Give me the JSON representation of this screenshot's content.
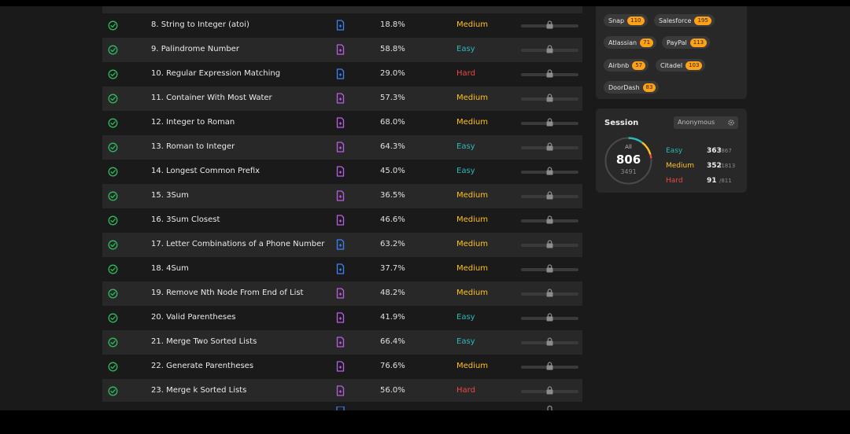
{
  "problems": [
    {
      "title": "8. String to Integer (atoi)",
      "acceptance": "18.8%",
      "difficulty": "Medium",
      "solution_color": "#3b82f6"
    },
    {
      "title": "9. Palindrome Number",
      "acceptance": "58.8%",
      "difficulty": "Easy",
      "solution_color": "#b95de6"
    },
    {
      "title": "10. Regular Expression Matching",
      "acceptance": "29.0%",
      "difficulty": "Hard",
      "solution_color": "#3b82f6"
    },
    {
      "title": "11. Container With Most Water",
      "acceptance": "57.3%",
      "difficulty": "Medium",
      "solution_color": "#b95de6"
    },
    {
      "title": "12. Integer to Roman",
      "acceptance": "68.0%",
      "difficulty": "Medium",
      "solution_color": "#b95de6"
    },
    {
      "title": "13. Roman to Integer",
      "acceptance": "64.3%",
      "difficulty": "Easy",
      "solution_color": "#b95de6"
    },
    {
      "title": "14. Longest Common Prefix",
      "acceptance": "45.0%",
      "difficulty": "Easy",
      "solution_color": "#b95de6"
    },
    {
      "title": "15. 3Sum",
      "acceptance": "36.5%",
      "difficulty": "Medium",
      "solution_color": "#b95de6"
    },
    {
      "title": "16. 3Sum Closest",
      "acceptance": "46.6%",
      "difficulty": "Medium",
      "solution_color": "#b95de6"
    },
    {
      "title": "17. Letter Combinations of a Phone Number",
      "acceptance": "63.2%",
      "difficulty": "Medium",
      "solution_color": "#3b82f6"
    },
    {
      "title": "18. 4Sum",
      "acceptance": "37.7%",
      "difficulty": "Medium",
      "solution_color": "#3b82f6"
    },
    {
      "title": "19. Remove Nth Node From End of List",
      "acceptance": "48.2%",
      "difficulty": "Medium",
      "solution_color": "#b95de6"
    },
    {
      "title": "20. Valid Parentheses",
      "acceptance": "41.9%",
      "difficulty": "Easy",
      "solution_color": "#b95de6"
    },
    {
      "title": "21. Merge Two Sorted Lists",
      "acceptance": "66.4%",
      "difficulty": "Easy",
      "solution_color": "#b95de6"
    },
    {
      "title": "22. Generate Parentheses",
      "acceptance": "76.6%",
      "difficulty": "Medium",
      "solution_color": "#b95de6"
    },
    {
      "title": "23. Merge k Sorted Lists",
      "acceptance": "56.0%",
      "difficulty": "Hard",
      "solution_color": "#b95de6"
    }
  ],
  "companies": [
    {
      "name": "Snap",
      "count": "110"
    },
    {
      "name": "Salesforce",
      "count": "195"
    },
    {
      "name": "Atlassian",
      "count": "71"
    },
    {
      "name": "PayPal",
      "count": "113"
    },
    {
      "name": "Airbnb",
      "count": "57"
    },
    {
      "name": "Citadel",
      "count": "103"
    },
    {
      "name": "DoorDash",
      "count": "83"
    }
  ],
  "session": {
    "title": "Session",
    "selected": "Anonymous",
    "all_label": "All",
    "solved": "806",
    "total": "3491",
    "stats": [
      {
        "label": "Easy",
        "solved": "363",
        "total": "/867",
        "color": "#2db8b8"
      },
      {
        "label": "Medium",
        "solved": "352",
        "total": "/1813",
        "color": "#ffc01e"
      },
      {
        "label": "Hard",
        "solved": "91",
        "total": "/811",
        "color": "#ef4743"
      }
    ]
  },
  "colors": {
    "easy": "#2db8b8",
    "medium": "#ffc01e",
    "hard": "#ef4743",
    "check": "#2cbb5d",
    "accent": "#ffa116"
  },
  "icons": {
    "status": "check-circle-icon",
    "solution": "document-icon",
    "frequency": "lock-icon",
    "session_menu": "gear-icon"
  }
}
